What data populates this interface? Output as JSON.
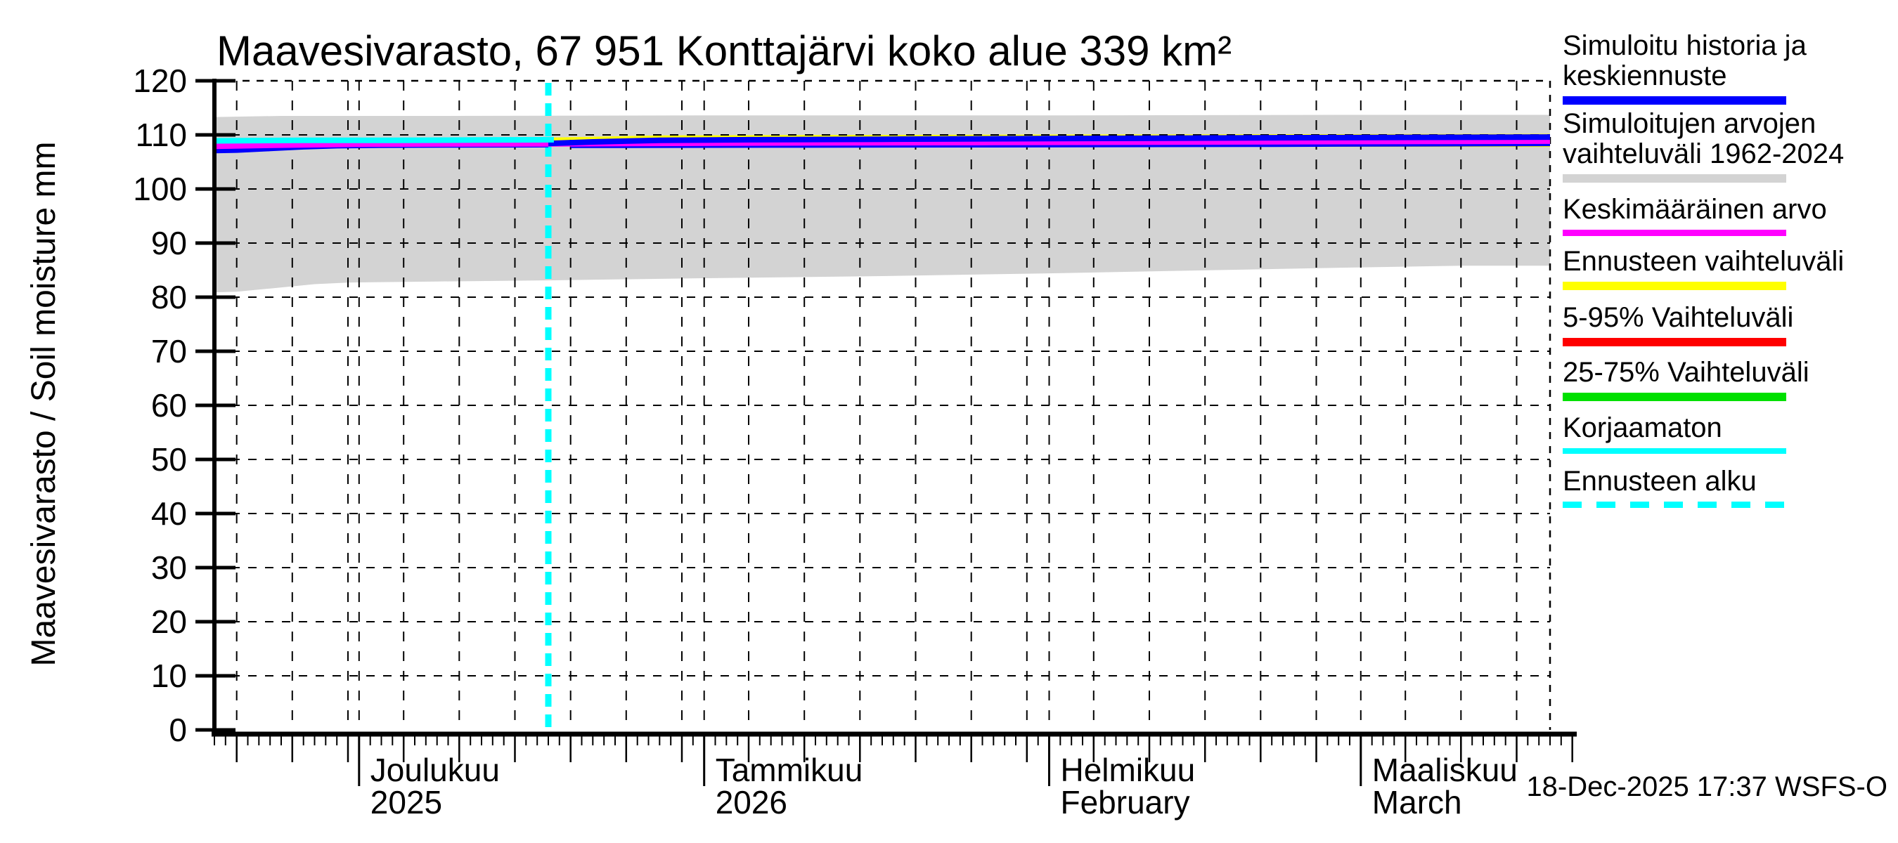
{
  "title": "Maavesivarasto, 67 951 Konttajärvi koko alue 339 km²",
  "footer": "18-Dec-2025 17:37 WSFS-O",
  "y_axis": {
    "label": "Maavesivarasto / Soil moisture  mm",
    "min": 0,
    "max": 120,
    "tick_step": 10
  },
  "x_axis": {
    "days_total": 120,
    "months": [
      {
        "label": "Joulukuu",
        "sublabel": "2025",
        "start_day": 13
      },
      {
        "label": "Tammikuu",
        "sublabel": "2026",
        "start_day": 44
      },
      {
        "label": "Helmikuu",
        "sublabel": "February",
        "start_day": 75
      },
      {
        "label": "Maaliskuu",
        "sublabel": "March",
        "start_day": 103
      }
    ],
    "five_day_ticks": [
      2,
      7,
      12,
      17,
      22,
      27,
      32,
      37,
      42,
      48,
      53,
      58,
      63,
      68,
      73,
      79,
      84,
      89,
      94,
      99,
      107,
      112,
      117,
      122
    ]
  },
  "colors": {
    "blue": "#0000FF",
    "gray": "#D3D3D3",
    "magenta": "#FF00FF",
    "yellow": "#FFFF00",
    "red": "#FF0000",
    "green": "#00E000",
    "cyan": "#00FFFF",
    "grid": "#000000",
    "background": "#FFFFFF"
  },
  "legend": [
    {
      "lines": [
        "Simuloitu historia ja",
        "keskiennuste"
      ],
      "color": "blue",
      "dashed": false
    },
    {
      "lines": [
        "Simuloitujen arvojen",
        "vaihteluväli 1962-2024"
      ],
      "color": "gray",
      "dashed": false
    },
    {
      "lines": [
        "Keskimääräinen arvo"
      ],
      "color": "magenta",
      "dashed": false
    },
    {
      "lines": [
        "Ennusteen vaihteluväli"
      ],
      "color": "yellow",
      "dashed": false
    },
    {
      "lines": [
        "5-95% Vaihteluväli"
      ],
      "color": "red",
      "dashed": false
    },
    {
      "lines": [
        "25-75% Vaihteluväli"
      ],
      "color": "green",
      "dashed": false
    },
    {
      "lines": [
        "Korjaamaton"
      ],
      "color": "cyan",
      "dashed": false
    },
    {
      "lines": [
        "Ennusteen alku"
      ],
      "color": "cyan",
      "dashed": true
    }
  ],
  "chart_data": {
    "type": "line",
    "title": "Maavesivarasto, 67 951 Konttajärvi koko alue 339 km²",
    "ylabel": "Maavesivarasto / Soil moisture  mm",
    "ylim": [
      0,
      120
    ],
    "grid": true,
    "legend_position": "right",
    "x_unit": "day offset on axis (day 0 = left edge, months marked at start_day)",
    "forecast_start_day": 30,
    "bands": [
      {
        "name": "Simuloitujen arvojen vaihteluväli 1962-2024",
        "color": "gray",
        "upper": [
          [
            0,
            113.3
          ],
          [
            6,
            113.5
          ],
          [
            20,
            113.5
          ],
          [
            44,
            113.6
          ],
          [
            75,
            113.6
          ],
          [
            103,
            113.7
          ],
          [
            120,
            113.7
          ]
        ],
        "lower": [
          [
            0,
            80.9
          ],
          [
            2,
            81.0
          ],
          [
            5,
            81.6
          ],
          [
            9,
            82.4
          ],
          [
            12,
            82.7
          ],
          [
            20,
            82.9
          ],
          [
            30,
            83.1
          ],
          [
            44,
            83.5
          ],
          [
            60,
            83.9
          ],
          [
            75,
            84.4
          ],
          [
            90,
            85.0
          ],
          [
            103,
            85.5
          ],
          [
            112,
            85.8
          ],
          [
            120,
            85.8
          ]
        ]
      },
      {
        "name": "Ennusteen vaihteluväli",
        "color": "yellow",
        "upper": [
          [
            30,
            109.5
          ],
          [
            40,
            109.9
          ],
          [
            60,
            110.0
          ],
          [
            90,
            110.1
          ],
          [
            120,
            110.2
          ]
        ],
        "lower": [
          [
            30,
            108.0
          ],
          [
            60,
            107.85
          ],
          [
            120,
            107.75
          ]
        ]
      }
    ],
    "lines": [
      {
        "name": "Simuloitu historia ja keskiennuste (lower strand)",
        "color": "blue",
        "width": 6,
        "points": [
          [
            32,
            107.95
          ],
          [
            50,
            108.0
          ],
          [
            70,
            108.05
          ],
          [
            95,
            108.15
          ],
          [
            120,
            108.3
          ]
        ]
      },
      {
        "name": "Simuloitu historia",
        "color": "blue",
        "width": 8,
        "points": [
          [
            0,
            107.1
          ],
          [
            2,
            107.2
          ],
          [
            5,
            107.5
          ],
          [
            8,
            107.8
          ],
          [
            11,
            108.0
          ],
          [
            15,
            108.1
          ],
          [
            22,
            108.15
          ],
          [
            30,
            108.2
          ]
        ]
      },
      {
        "name": "Keskimääräinen arvo",
        "color": "magenta",
        "width": 8,
        "points": [
          [
            0,
            107.9
          ],
          [
            6,
            108.1
          ],
          [
            14,
            108.3
          ],
          [
            30,
            108.35
          ],
          [
            50,
            108.5
          ],
          [
            70,
            108.6
          ],
          [
            90,
            108.7
          ],
          [
            110,
            108.8
          ],
          [
            120,
            108.85
          ]
        ]
      },
      {
        "name": "Keskiennuste",
        "color": "blue",
        "width": 8,
        "points": [
          [
            30,
            108.4
          ],
          [
            34,
            108.7
          ],
          [
            40,
            109.0
          ],
          [
            48,
            109.1
          ],
          [
            60,
            109.2
          ],
          [
            80,
            109.35
          ],
          [
            100,
            109.5
          ],
          [
            120,
            109.6
          ]
        ]
      },
      {
        "name": "Korjaamaton",
        "color": "cyan",
        "width": 8,
        "points": [
          [
            0,
            108.9
          ],
          [
            8,
            109.0
          ],
          [
            16,
            109.0
          ],
          [
            24,
            109.05
          ],
          [
            30.5,
            109.1
          ]
        ]
      }
    ],
    "vlines": [
      {
        "name": "Ennusteen alku",
        "x": 30,
        "color": "cyan",
        "dashed": true
      }
    ]
  }
}
